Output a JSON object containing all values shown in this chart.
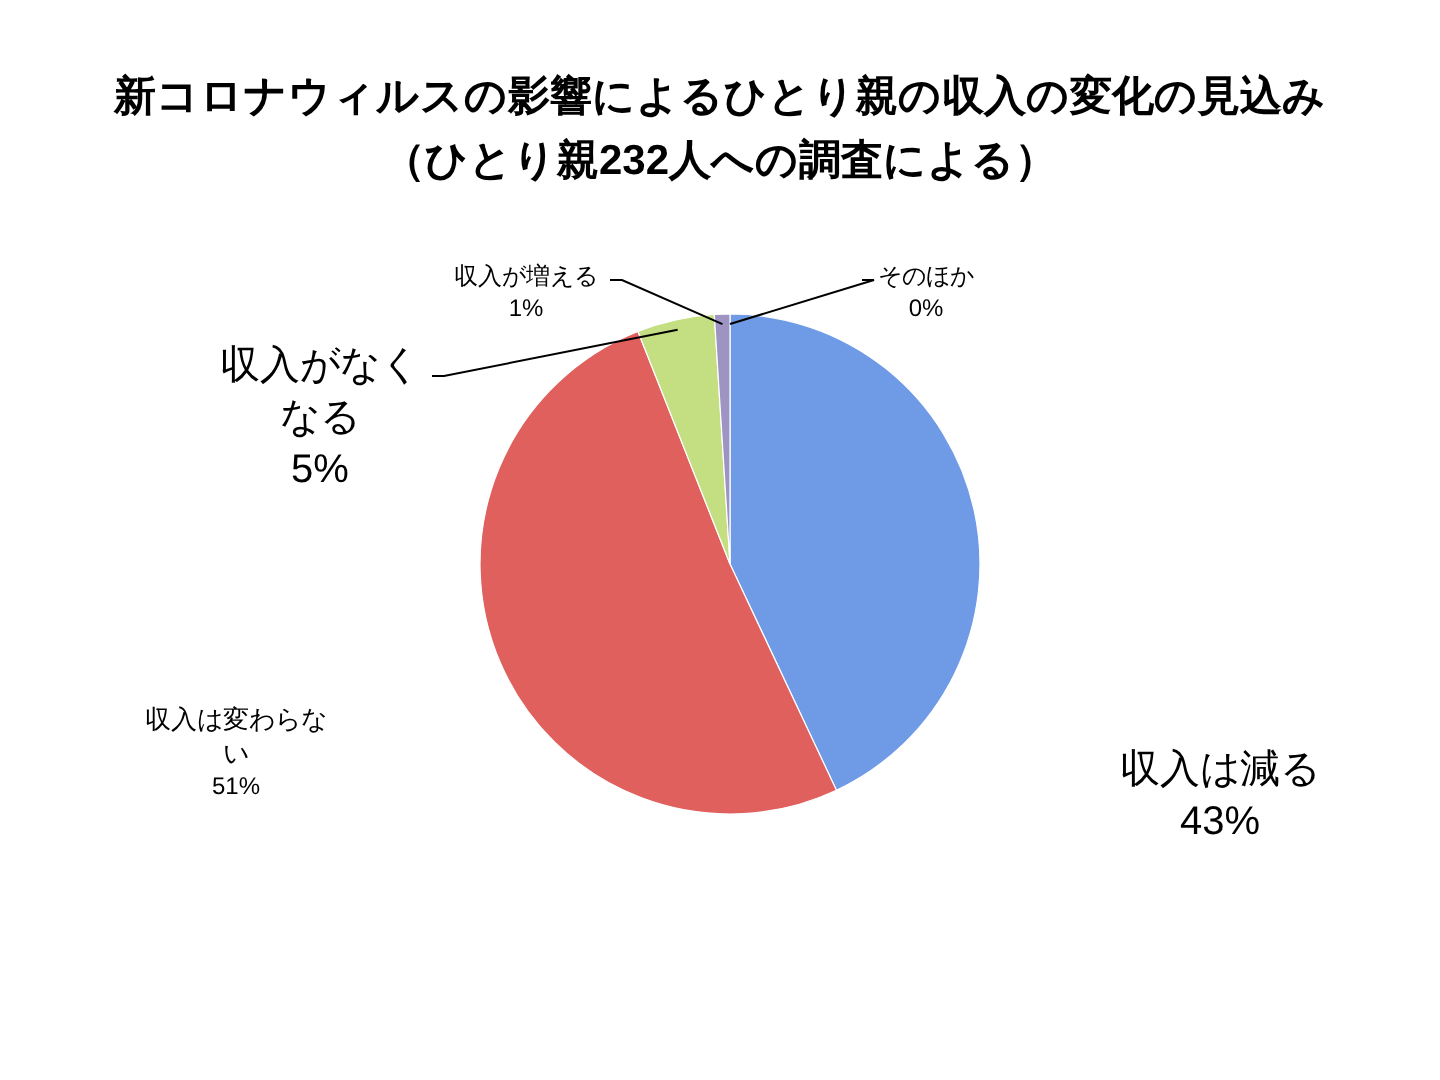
{
  "chart_data": {
    "type": "pie",
    "title": "新コロナウィルスの影響によるひとり親の収入の変化の見込み",
    "subtitle": "（ひとり親232人への調査による）",
    "categories": [
      "収入は減る",
      "収入は変わらない",
      "収入がなくなる",
      "収入が増える",
      "そのほか"
    ],
    "values": [
      43,
      51,
      5,
      1,
      0
    ],
    "colors": [
      "#6e9ae6",
      "#e0605e",
      "#c3df82",
      "#9e94c4",
      "#86d3f5"
    ],
    "value_labels": [
      "43%",
      "51%",
      "5%",
      "1%",
      "0%"
    ]
  }
}
